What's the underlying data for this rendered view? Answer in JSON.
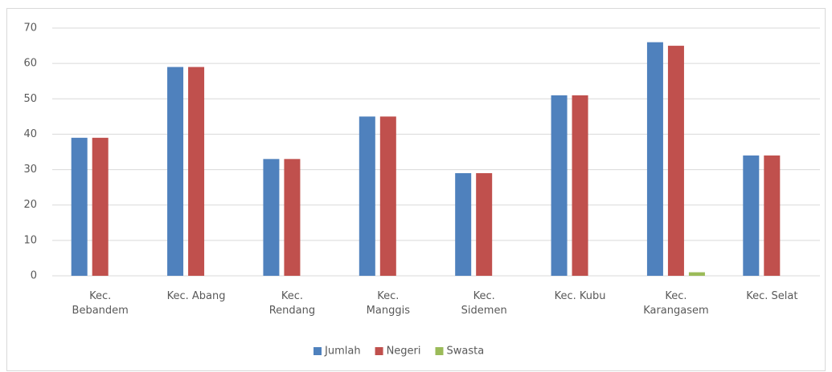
{
  "chart_data": {
    "type": "bar",
    "categories": [
      "Kec. Bebandem",
      "Kec. Abang",
      "Kec. Rendang",
      "Kec. Manggis",
      "Kec. Sidemen",
      "Kec. Kubu",
      "Kec. Karangasem",
      "Kec. Selat"
    ],
    "series": [
      {
        "name": "Jumlah",
        "color": "#4f81bd",
        "values": [
          39,
          59,
          33,
          45,
          29,
          51,
          66,
          34
        ]
      },
      {
        "name": "Negeri",
        "color": "#c0504d",
        "values": [
          39,
          59,
          33,
          45,
          29,
          51,
          65,
          34
        ]
      },
      {
        "name": "Swasta",
        "color": "#9bbb59",
        "values": [
          0,
          0,
          0,
          0,
          0,
          0,
          1,
          0
        ]
      }
    ],
    "ylim": [
      0,
      70
    ],
    "yticks": [
      0,
      10,
      20,
      30,
      40,
      50,
      60,
      70
    ],
    "grid": true,
    "legend": "bottom"
  }
}
